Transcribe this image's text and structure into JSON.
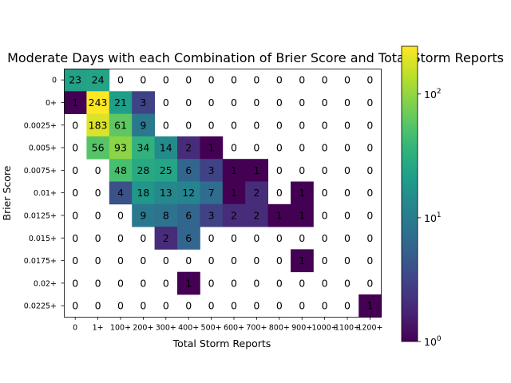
{
  "chart_data": {
    "type": "heatmap",
    "title": "Moderate Days with each Combination of Brier Score and Total Storm Reports",
    "xlabel": "Total Storm Reports",
    "ylabel": "Brier Score",
    "x_categories": [
      "0",
      "1+",
      "100+",
      "200+",
      "300+",
      "400+",
      "500+",
      "600+",
      "700+",
      "800+",
      "900+",
      "1000+",
      "1100+",
      "1200+"
    ],
    "y_categories": [
      "0",
      "0+",
      "0.0025+",
      "0.005+",
      "0.0075+",
      "0.01+",
      "0.0125+",
      "0.015+",
      "0.0175+",
      "0.02+",
      "0.0225+"
    ],
    "values": [
      [
        23,
        24,
        0,
        0,
        0,
        0,
        0,
        0,
        0,
        0,
        0,
        0,
        0,
        0
      ],
      [
        1,
        243,
        21,
        3,
        0,
        0,
        0,
        0,
        0,
        0,
        0,
        0,
        0,
        0
      ],
      [
        0,
        183,
        61,
        9,
        0,
        0,
        0,
        0,
        0,
        0,
        0,
        0,
        0,
        0
      ],
      [
        0,
        56,
        93,
        34,
        14,
        2,
        1,
        0,
        0,
        0,
        0,
        0,
        0,
        0
      ],
      [
        0,
        0,
        48,
        28,
        25,
        6,
        3,
        1,
        1,
        0,
        0,
        0,
        0,
        0
      ],
      [
        0,
        0,
        4,
        18,
        13,
        12,
        7,
        1,
        2,
        0,
        1,
        0,
        0,
        0
      ],
      [
        0,
        0,
        0,
        9,
        8,
        6,
        3,
        2,
        2,
        1,
        1,
        0,
        0,
        0
      ],
      [
        0,
        0,
        0,
        0,
        2,
        6,
        0,
        0,
        0,
        0,
        0,
        0,
        0,
        0
      ],
      [
        0,
        0,
        0,
        0,
        0,
        0,
        0,
        0,
        0,
        0,
        1,
        0,
        0,
        0
      ],
      [
        0,
        0,
        0,
        0,
        0,
        1,
        0,
        0,
        0,
        0,
        0,
        0,
        0,
        0
      ],
      [
        0,
        0,
        0,
        0,
        0,
        0,
        0,
        0,
        0,
        0,
        0,
        0,
        0,
        1
      ]
    ],
    "color_scale": "log",
    "colormap": "viridis",
    "colorbar_range": [
      1,
      243
    ],
    "colorbar_ticks": [
      {
        "value": 1,
        "base": "10",
        "exp": "0"
      },
      {
        "value": 10,
        "base": "10",
        "exp": "1"
      },
      {
        "value": 100,
        "base": "10",
        "exp": "2"
      }
    ],
    "zero_cells": "blank",
    "grid": false
  }
}
